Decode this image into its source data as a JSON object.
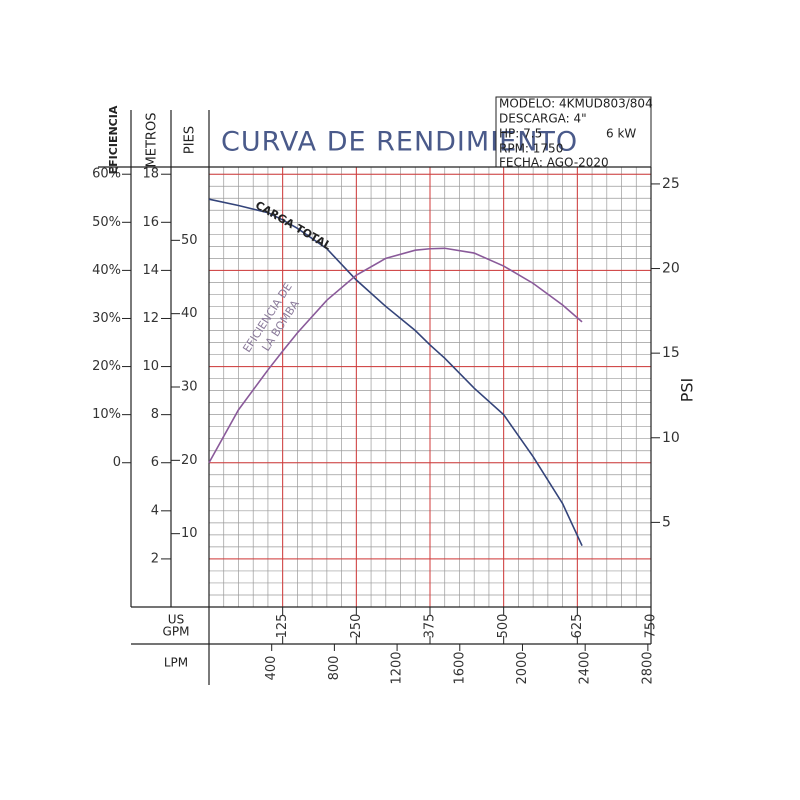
{
  "chart_data": {
    "type": "line",
    "title": "CURVA DE RENDIMIENTO",
    "info": [
      "MODELO: 4KMUD803/804",
      "DESCARGA: 4\"",
      "HP: 7.5",
      "6 kW",
      "RPM: 1750",
      "FECHA: AGO-2020"
    ],
    "xlabel": [
      "US",
      "GPM"
    ],
    "xlim": [
      0,
      750
    ],
    "xticks": [
      125,
      250,
      375,
      500,
      625,
      750
    ],
    "lpm_label": "LPM",
    "lpm_lim": [
      0,
      2820
    ],
    "lpm_ticks": [
      400,
      800,
      1200,
      1600,
      2000,
      2400,
      2800
    ],
    "ylabel": "METROS",
    "ylim": [
      0,
      18.3
    ],
    "yticks": [
      2,
      4,
      6,
      8,
      10,
      12,
      14,
      16,
      18
    ],
    "pies_label": "PIES",
    "pies_lim": [
      0,
      60.0
    ],
    "pies_ticks": [
      10,
      20,
      30,
      40,
      50
    ],
    "eficiencia_label": "EFICIENCIA",
    "eficiencia_lim": [
      -30,
      61.5
    ],
    "eficiencia_ticks": [
      0,
      {
        "value": 10,
        "label": "10%"
      },
      {
        "value": 20,
        "label": "20%"
      },
      {
        "value": 30,
        "label": "30%"
      },
      {
        "value": 40,
        "label": "40%"
      },
      {
        "value": 50,
        "label": "50%"
      },
      {
        "value": 60,
        "label": "60%"
      }
    ],
    "y2label": "PSI",
    "y2lim": [
      0,
      26.0
    ],
    "y2ticks": [
      5,
      10,
      15,
      20,
      25
    ],
    "grid": true,
    "x": [
      0,
      50,
      100,
      125,
      150,
      200,
      250,
      300,
      350,
      375,
      400,
      450,
      500,
      550,
      600,
      633
    ],
    "series": [
      {
        "name": "CARGA TOTAL",
        "color": "#34447a",
        "axis": "y",
        "values": [
          16.96,
          16.7,
          16.4,
          16.1,
          15.75,
          14.9,
          13.6,
          12.5,
          11.5,
          10.9,
          10.35,
          9.1,
          8.0,
          6.25,
          4.3,
          2.55
        ]
      },
      {
        "name": [
          "EFICIENCIA DE",
          "LA BOMBA"
        ],
        "color": "#8a5a9a",
        "axis": "eficiencia",
        "values": [
          0,
          11,
          19.3,
          23.2,
          27,
          33.8,
          39,
          42.5,
          44.2,
          44.5,
          44.6,
          43.6,
          40.9,
          37.3,
          32.8,
          29.3
        ]
      }
    ]
  }
}
